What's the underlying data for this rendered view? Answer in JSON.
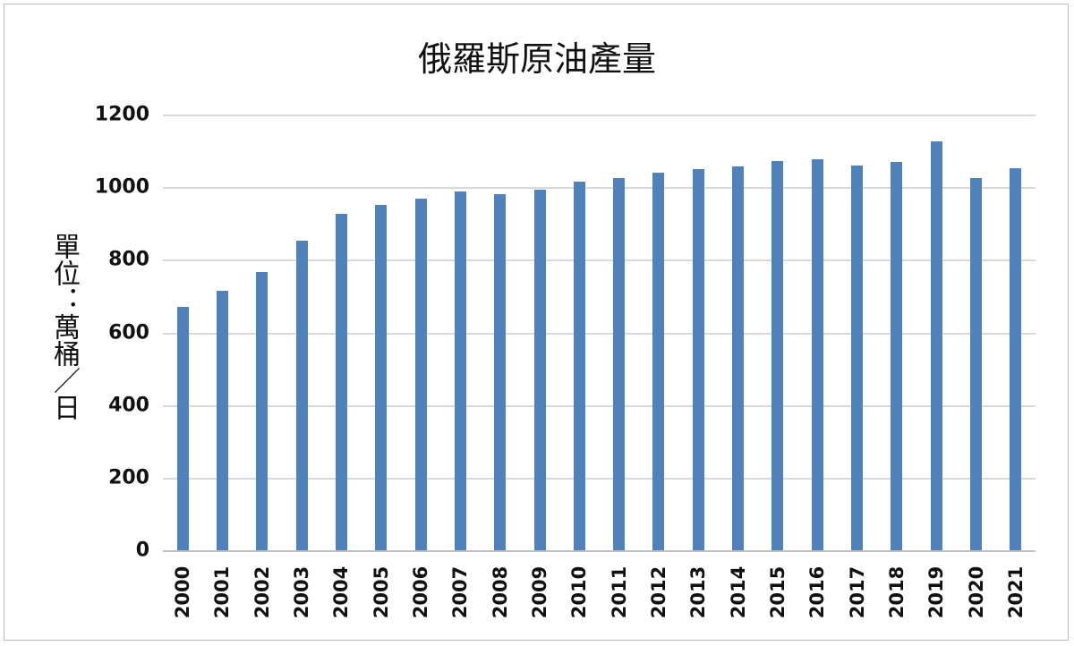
{
  "chart_data": {
    "type": "bar",
    "title": "俄羅斯原油產量",
    "xlabel": "",
    "ylabel": "單位：萬桶／日",
    "ylim": [
      0,
      1200
    ],
    "yticks": [
      0,
      200,
      400,
      600,
      800,
      1000,
      1200
    ],
    "grid": true,
    "legend": null,
    "color": "#4f81bd",
    "categories": [
      "2000",
      "2001",
      "2002",
      "2003",
      "2004",
      "2005",
      "2006",
      "2007",
      "2008",
      "2009",
      "2010",
      "2011",
      "2012",
      "2013",
      "2014",
      "2015",
      "2016",
      "2017",
      "2018",
      "2019",
      "2020",
      "2021"
    ],
    "values": [
      670,
      714,
      766,
      852,
      926,
      951,
      968,
      988,
      980,
      993,
      1015,
      1025,
      1039,
      1049,
      1057,
      1071,
      1076,
      1059,
      1069,
      1126,
      1025,
      1052
    ]
  }
}
